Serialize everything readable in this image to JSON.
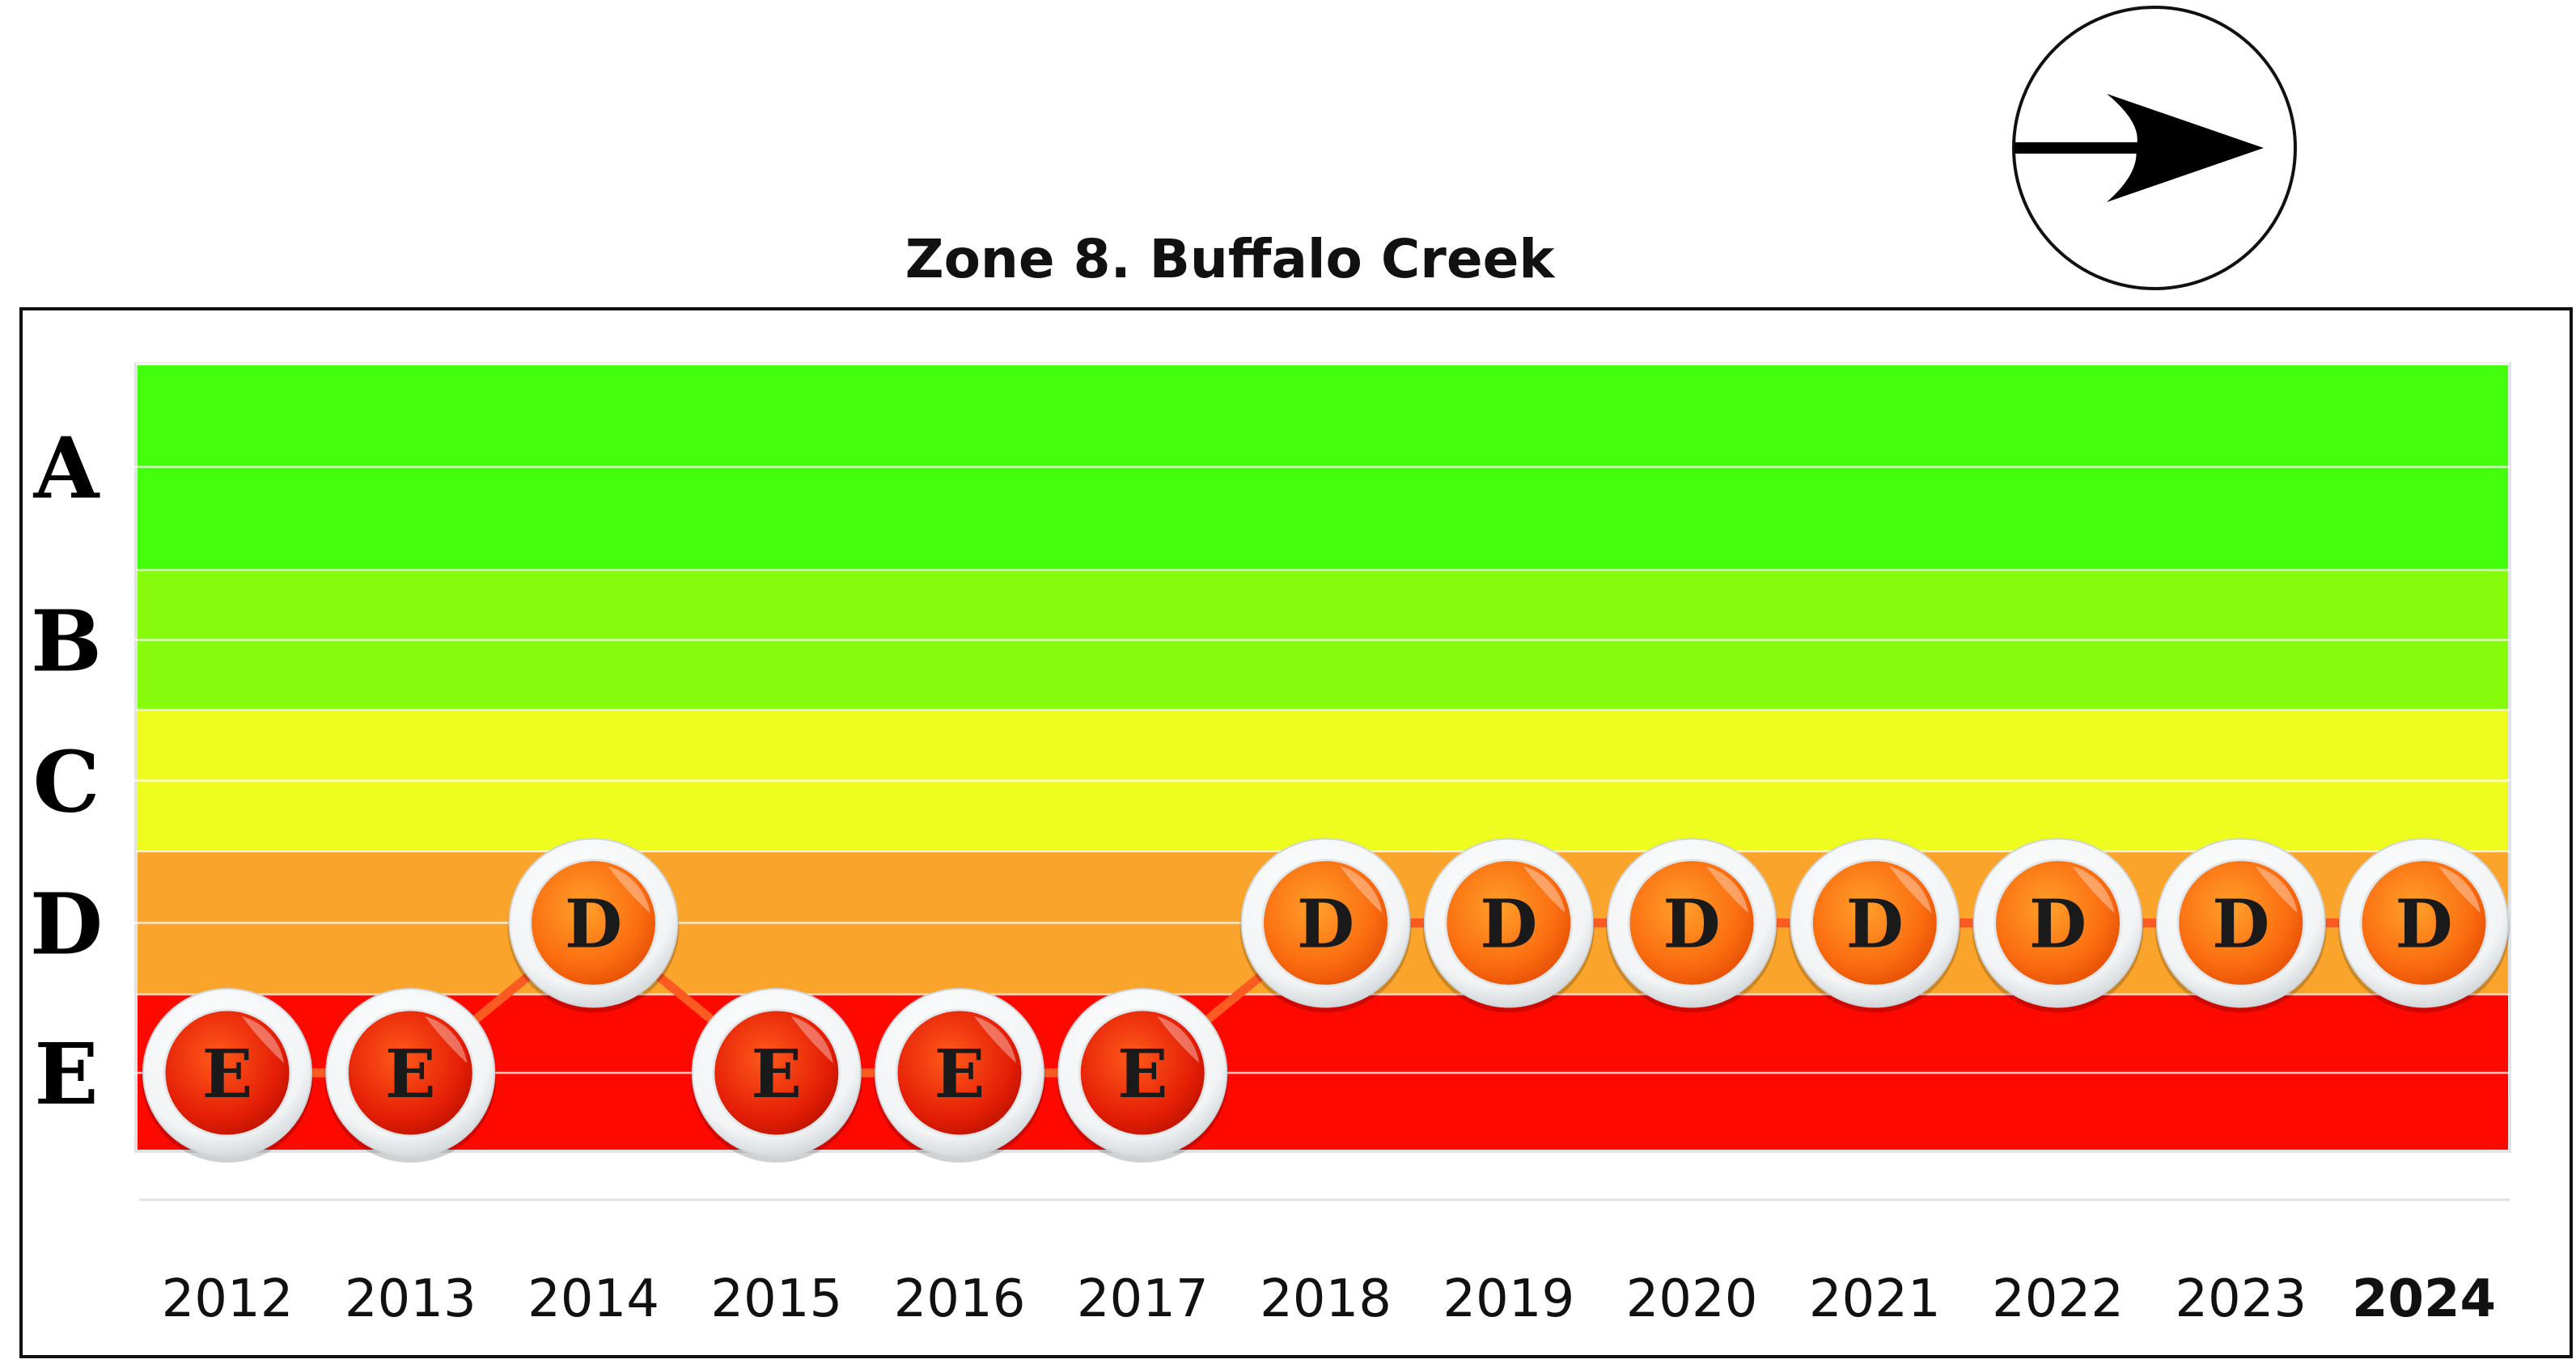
{
  "chart_data": {
    "type": "line",
    "title": "Zone 8.  Buffalo Creek",
    "grades": [
      "A",
      "B",
      "C",
      "D",
      "E"
    ],
    "band_colors": {
      "A": "#44ff0c",
      "B": "#86fb0c",
      "C": "#eefc1e",
      "D": "#fba42c",
      "E": "#fe0900"
    },
    "line_color": "#fb5a20",
    "categories": [
      "2012",
      "2013",
      "2014",
      "2015",
      "2016",
      "2017",
      "2018",
      "2019",
      "2020",
      "2021",
      "2022",
      "2023",
      "2024"
    ],
    "series": [
      {
        "values": [
          "E",
          "E",
          "D",
          "E",
          "E",
          "E",
          "D",
          "D",
          "D",
          "D",
          "D",
          "D",
          "D"
        ]
      }
    ],
    "highlighted_category": "2024",
    "trend_indicator": "right-arrow-icon"
  }
}
